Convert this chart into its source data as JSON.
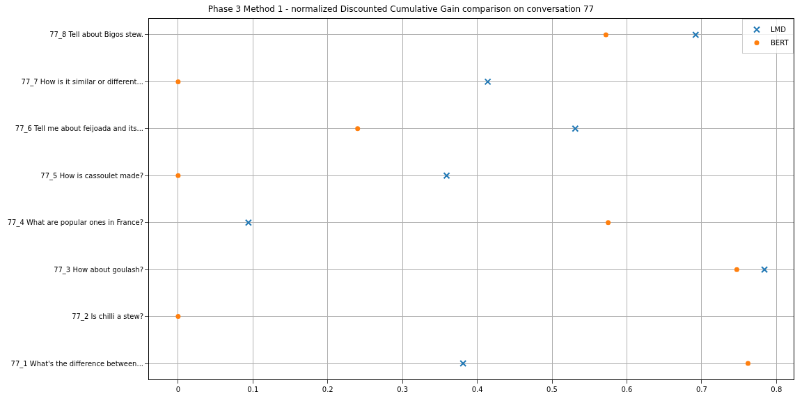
{
  "chart_data": {
    "type": "scatter",
    "title": "Phase 3 Method 1 - normalized Discounted Cumulative Gain comparison on conversation 77",
    "orientation": "horizontal",
    "categories": [
      "77_8 Tell about Bigos stew.",
      "77_7 How is it similar or different...",
      "77_6 Tell me about feijoada and its...",
      "77_5 How is cassoulet made?",
      "77_4 What are popular ones in France?",
      "77_3 How about goulash?",
      "77_2 Is chilli a stew?",
      "77_1 What's the difference between..."
    ],
    "series": [
      {
        "name": "LMD",
        "color": "#1f77b4",
        "marker": "cross",
        "values": [
          0.692,
          0.414,
          0.531,
          0.359,
          0.094,
          0.784,
          null,
          0.381
        ]
      },
      {
        "name": "BERT",
        "color": "#ff7f0e",
        "marker": "circle",
        "values": [
          0.572,
          0,
          0.24,
          0,
          0.575,
          0.747,
          0,
          0.762
        ]
      }
    ],
    "xlim": [
      -0.039,
      0.823
    ],
    "xticks": [
      0,
      0.1,
      0.2,
      0.3,
      0.4,
      0.5,
      0.6,
      0.7,
      0.8
    ],
    "grid": true,
    "legend": "top right"
  }
}
